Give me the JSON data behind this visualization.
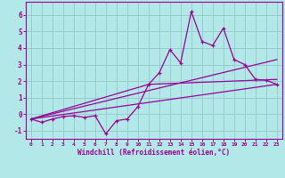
{
  "title": "",
  "xlabel": "Windchill (Refroidissement éolien,°C)",
  "ylabel": "",
  "bg_color": "#b3e8e8",
  "grid_color": "#99cccc",
  "line_color": "#990099",
  "xlim": [
    -0.5,
    23.5
  ],
  "ylim": [
    -1.5,
    6.8
  ],
  "xticks": [
    0,
    1,
    2,
    3,
    4,
    5,
    6,
    7,
    8,
    9,
    10,
    11,
    12,
    13,
    14,
    15,
    16,
    17,
    18,
    19,
    20,
    21,
    22,
    23
  ],
  "yticks": [
    -1,
    0,
    1,
    2,
    3,
    4,
    5,
    6
  ],
  "scatter_x": [
    0,
    1,
    2,
    3,
    4,
    5,
    6,
    7,
    8,
    9,
    10,
    11,
    12,
    13,
    14,
    15,
    16,
    17,
    18,
    19,
    20,
    21,
    22,
    23
  ],
  "scatter_y": [
    -0.3,
    -0.5,
    -0.3,
    -0.15,
    -0.1,
    -0.2,
    -0.1,
    -1.2,
    -0.4,
    -0.3,
    0.45,
    1.8,
    2.5,
    3.9,
    3.1,
    6.2,
    4.4,
    4.15,
    5.2,
    3.3,
    3.0,
    2.1,
    2.05,
    1.8
  ],
  "line1_x": [
    0,
    23
  ],
  "line1_y": [
    -0.3,
    1.8
  ],
  "line2_x": [
    0,
    23
  ],
  "line2_y": [
    -0.3,
    3.3
  ],
  "line3_x": [
    0,
    11,
    23
  ],
  "line3_y": [
    -0.3,
    1.8,
    2.1
  ]
}
